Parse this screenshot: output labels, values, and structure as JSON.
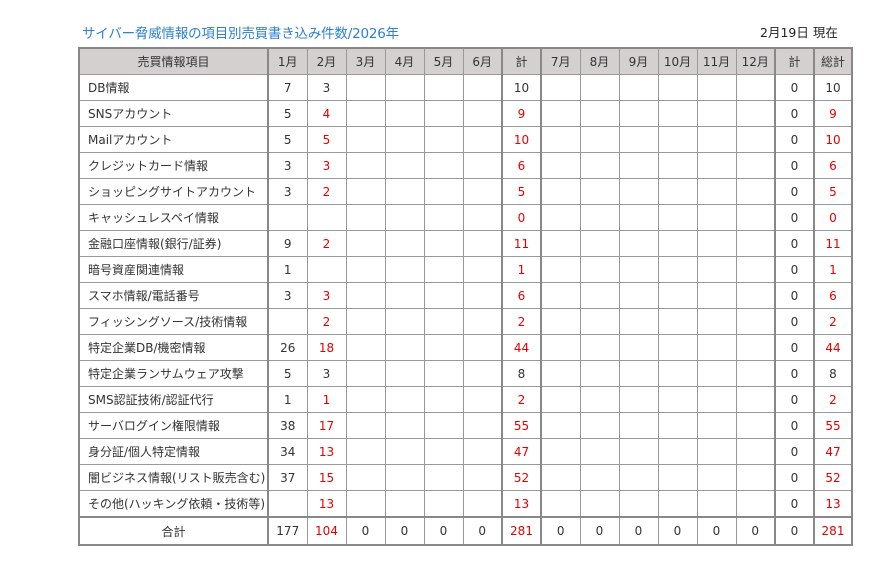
{
  "title": "サイバー脅威情報の項目別売買書き込み件数/2026年",
  "as_of": "2月19日 現在",
  "colors": {
    "title": "#2b7fd4",
    "highlight": "#e60000",
    "header_bg": "#d4d0d0"
  },
  "headers": [
    "売買情報項目",
    "1月",
    "2月",
    "3月",
    "4月",
    "5月",
    "6月",
    "計",
    "7月",
    "8月",
    "9月",
    "10月",
    "11月",
    "12月",
    "計",
    "総計"
  ],
  "rows": [
    {
      "label": "DB情報",
      "values": [
        "7",
        "3",
        "",
        "",
        "",
        "",
        "10",
        "",
        "",
        "",
        "",
        "",
        "",
        "0",
        "10"
      ],
      "red": false
    },
    {
      "label": "SNSアカウント",
      "values": [
        "5",
        "4",
        "",
        "",
        "",
        "",
        "9",
        "",
        "",
        "",
        "",
        "",
        "",
        "0",
        "9"
      ],
      "red": true
    },
    {
      "label": "Mailアカウント",
      "values": [
        "5",
        "5",
        "",
        "",
        "",
        "",
        "10",
        "",
        "",
        "",
        "",
        "",
        "",
        "0",
        "10"
      ],
      "red": true
    },
    {
      "label": "クレジットカード情報",
      "values": [
        "3",
        "3",
        "",
        "",
        "",
        "",
        "6",
        "",
        "",
        "",
        "",
        "",
        "",
        "0",
        "6"
      ],
      "red": true
    },
    {
      "label": "ショッピングサイトアカウント",
      "values": [
        "3",
        "2",
        "",
        "",
        "",
        "",
        "5",
        "",
        "",
        "",
        "",
        "",
        "",
        "0",
        "5"
      ],
      "red": true
    },
    {
      "label": "キャッシュレスペイ情報",
      "values": [
        "",
        "",
        "",
        "",
        "",
        "",
        "0",
        "",
        "",
        "",
        "",
        "",
        "",
        "0",
        "0"
      ],
      "red": true
    },
    {
      "label": "金融口座情報(銀行/証券)",
      "values": [
        "9",
        "2",
        "",
        "",
        "",
        "",
        "11",
        "",
        "",
        "",
        "",
        "",
        "",
        "0",
        "11"
      ],
      "red": true
    },
    {
      "label": "暗号資産関連情報",
      "values": [
        "1",
        "",
        "",
        "",
        "",
        "",
        "1",
        "",
        "",
        "",
        "",
        "",
        "",
        "0",
        "1"
      ],
      "red": true
    },
    {
      "label": "スマホ情報/電話番号",
      "values": [
        "3",
        "3",
        "",
        "",
        "",
        "",
        "6",
        "",
        "",
        "",
        "",
        "",
        "",
        "0",
        "6"
      ],
      "red": true
    },
    {
      "label": "フィッシングソース/技術情報",
      "values": [
        "",
        "2",
        "",
        "",
        "",
        "",
        "2",
        "",
        "",
        "",
        "",
        "",
        "",
        "0",
        "2"
      ],
      "red": true
    },
    {
      "label": "特定企業DB/機密情報",
      "values": [
        "26",
        "18",
        "",
        "",
        "",
        "",
        "44",
        "",
        "",
        "",
        "",
        "",
        "",
        "0",
        "44"
      ],
      "red": true
    },
    {
      "label": "特定企業ランサムウェア攻撃",
      "values": [
        "5",
        "3",
        "",
        "",
        "",
        "",
        "8",
        "",
        "",
        "",
        "",
        "",
        "",
        "0",
        "8"
      ],
      "red": false
    },
    {
      "label": "SMS認証技術/認証代行",
      "values": [
        "1",
        "1",
        "",
        "",
        "",
        "",
        "2",
        "",
        "",
        "",
        "",
        "",
        "",
        "0",
        "2"
      ],
      "red": true
    },
    {
      "label": "サーバログイン権限情報",
      "values": [
        "38",
        "17",
        "",
        "",
        "",
        "",
        "55",
        "",
        "",
        "",
        "",
        "",
        "",
        "0",
        "55"
      ],
      "red": true
    },
    {
      "label": "身分証/個人特定情報",
      "values": [
        "34",
        "13",
        "",
        "",
        "",
        "",
        "47",
        "",
        "",
        "",
        "",
        "",
        "",
        "0",
        "47"
      ],
      "red": true
    },
    {
      "label": "闇ビジネス情報(リスト販売含む)",
      "values": [
        "37",
        "15",
        "",
        "",
        "",
        "",
        "52",
        "",
        "",
        "",
        "",
        "",
        "",
        "0",
        "52"
      ],
      "red": true
    },
    {
      "label": "その他(ハッキング依頼・技術等)",
      "values": [
        "",
        "13",
        "",
        "",
        "",
        "",
        "13",
        "",
        "",
        "",
        "",
        "",
        "",
        "0",
        "13"
      ],
      "red": true
    }
  ],
  "total": {
    "label": "合計",
    "values": [
      "177",
      "104",
      "0",
      "0",
      "0",
      "0",
      "281",
      "0",
      "0",
      "0",
      "0",
      "0",
      "0",
      "0",
      "281"
    ],
    "red": true
  }
}
